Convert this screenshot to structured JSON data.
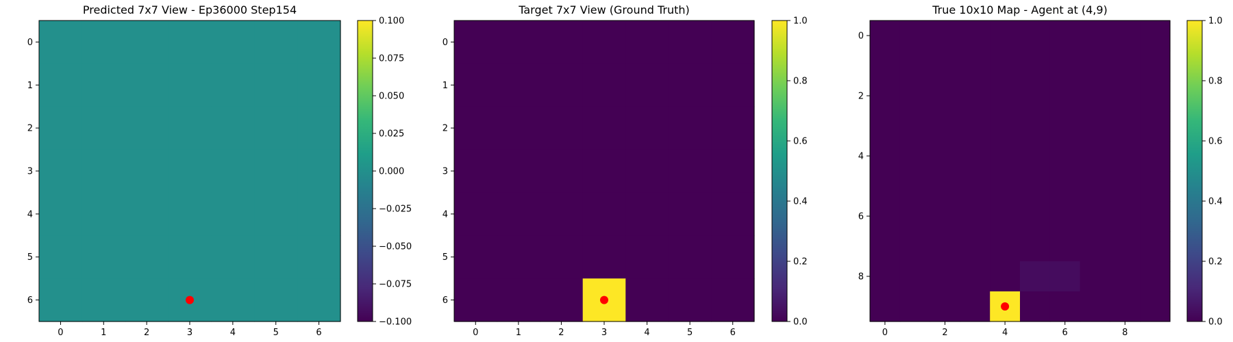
{
  "colors": {
    "viridis_stops": [
      "#440154",
      "#482878",
      "#3e4989",
      "#31688e",
      "#26828e",
      "#1f9e89",
      "#35b779",
      "#6ece58",
      "#b5de2b",
      "#fde725"
    ],
    "agent_marker": "#ff0000"
  },
  "chart_data": [
    {
      "type": "heatmap",
      "title": "Predicted 7x7 View - Ep36000 Step154",
      "rows": 7,
      "cols": 7,
      "x_ticks": [
        0,
        1,
        2,
        3,
        4,
        5,
        6
      ],
      "y_ticks": [
        0,
        1,
        2,
        3,
        4,
        5,
        6
      ],
      "values": [
        [
          0,
          0,
          0,
          0,
          0,
          0,
          0
        ],
        [
          0,
          0,
          0,
          0,
          0,
          0,
          0
        ],
        [
          0,
          0,
          0,
          0,
          0,
          0,
          0
        ],
        [
          0,
          0,
          0,
          0,
          0,
          0,
          0
        ],
        [
          0,
          0,
          0,
          0,
          0,
          0,
          0
        ],
        [
          0,
          0,
          0,
          0,
          0,
          0,
          0
        ],
        [
          0,
          0,
          0,
          0,
          0,
          0,
          0
        ]
      ],
      "vmin": -0.1,
      "vmax": 0.1,
      "colorbar_ticks": [
        -0.1,
        -0.075,
        -0.05,
        -0.025,
        0.0,
        0.025,
        0.05,
        0.075,
        0.1
      ],
      "colorbar_labels": [
        "−0.100",
        "−0.075",
        "−0.050",
        "−0.025",
        "0.000",
        "0.025",
        "0.050",
        "0.075",
        "0.100"
      ],
      "marker": {
        "x": 3,
        "y": 6
      }
    },
    {
      "type": "heatmap",
      "title": "Target 7x7 View (Ground Truth)",
      "rows": 7,
      "cols": 7,
      "x_ticks": [
        0,
        1,
        2,
        3,
        4,
        5,
        6
      ],
      "y_ticks": [
        0,
        1,
        2,
        3,
        4,
        5,
        6
      ],
      "values": [
        [
          0,
          0,
          0,
          0,
          0,
          0,
          0
        ],
        [
          0,
          0,
          0,
          0,
          0,
          0,
          0
        ],
        [
          0,
          0,
          0,
          0,
          0,
          0,
          0
        ],
        [
          0,
          0,
          0,
          0,
          0,
          0,
          0
        ],
        [
          0,
          0,
          0,
          0,
          0,
          0,
          0
        ],
        [
          0,
          0,
          0,
          0,
          0,
          0,
          0
        ],
        [
          0,
          0,
          0,
          1,
          0,
          0,
          0
        ]
      ],
      "vmin": 0.0,
      "vmax": 1.0,
      "colorbar_ticks": [
        0.0,
        0.2,
        0.4,
        0.6,
        0.8,
        1.0
      ],
      "colorbar_labels": [
        "0.0",
        "0.2",
        "0.4",
        "0.6",
        "0.8",
        "1.0"
      ],
      "marker": {
        "x": 3,
        "y": 6
      }
    },
    {
      "type": "heatmap",
      "title": "True 10x10 Map - Agent at (4,9)",
      "rows": 10,
      "cols": 10,
      "x_ticks": [
        0,
        2,
        4,
        6,
        8
      ],
      "y_ticks": [
        0,
        2,
        4,
        6,
        8
      ],
      "values": [
        [
          0,
          0,
          0,
          0,
          0,
          0,
          0,
          0,
          0,
          0
        ],
        [
          0,
          0,
          0,
          0,
          0,
          0,
          0,
          0,
          0,
          0
        ],
        [
          0,
          0,
          0,
          0,
          0,
          0,
          0,
          0,
          0,
          0
        ],
        [
          0,
          0,
          0,
          0,
          0,
          0,
          0,
          0,
          0,
          0
        ],
        [
          0,
          0,
          0,
          0,
          0,
          0,
          0,
          0,
          0,
          0
        ],
        [
          0,
          0,
          0,
          0,
          0,
          0,
          0,
          0,
          0,
          0
        ],
        [
          0,
          0,
          0,
          0,
          0,
          0,
          0,
          0,
          0,
          0
        ],
        [
          0,
          0,
          0,
          0,
          0,
          0,
          0,
          0,
          0,
          0
        ],
        [
          0,
          0,
          0,
          0,
          0,
          0.03,
          0.03,
          0,
          0,
          0
        ],
        [
          0,
          0,
          0,
          0,
          1,
          0,
          0,
          0,
          0,
          0
        ]
      ],
      "vmin": 0.0,
      "vmax": 1.0,
      "colorbar_ticks": [
        0.0,
        0.2,
        0.4,
        0.6,
        0.8,
        1.0
      ],
      "colorbar_labels": [
        "0.0",
        "0.2",
        "0.4",
        "0.6",
        "0.8",
        "1.0"
      ],
      "marker": {
        "x": 4,
        "y": 9
      }
    }
  ]
}
